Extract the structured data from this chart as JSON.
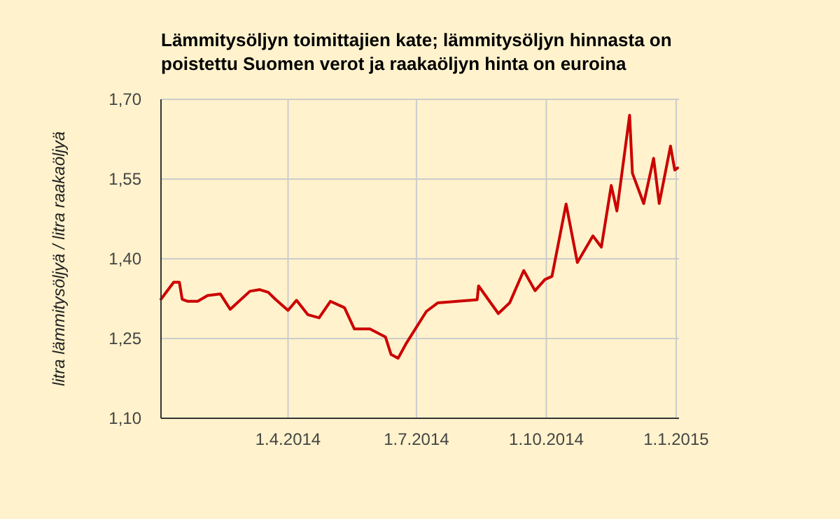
{
  "chart_data": {
    "type": "line",
    "title": "Lämmitysöljyn toimittajien kate; lämmitysöljyn hinnasta on poistettu Suomen verot ja raakaöljyn hinta on euroina",
    "ylabel": "litra lämmitysöljyä / litra raakaöljyä",
    "x": [
      "2014-01-01",
      "2014-01-10",
      "2014-01-14",
      "2014-01-16",
      "2014-01-20",
      "2014-01-27",
      "2014-02-03",
      "2014-02-12",
      "2014-02-19",
      "2014-03-05",
      "2014-03-12",
      "2014-03-18",
      "2014-03-23",
      "2014-04-01",
      "2014-04-07",
      "2014-04-15",
      "2014-04-23",
      "2014-05-01",
      "2014-05-11",
      "2014-05-18",
      "2014-05-29",
      "2014-06-09",
      "2014-06-13",
      "2014-06-18",
      "2014-06-24",
      "2014-07-08",
      "2014-07-16",
      "2014-08-13",
      "2014-08-14",
      "2014-08-28",
      "2014-09-05",
      "2014-09-15",
      "2014-09-23",
      "2014-09-30",
      "2014-10-05",
      "2014-10-15",
      "2014-10-23",
      "2014-11-03",
      "2014-11-09",
      "2014-11-16",
      "2014-11-20",
      "2014-11-29",
      "2014-12-01",
      "2014-12-09",
      "2014-12-16",
      "2014-12-20",
      "2014-12-28",
      "2014-12-31",
      "2015-01-02"
    ],
    "series": [
      {
        "color": "#cc0000",
        "values": [
          1.324,
          1.356,
          1.356,
          1.324,
          1.32,
          1.32,
          1.331,
          1.334,
          1.305,
          1.339,
          1.342,
          1.337,
          1.324,
          1.303,
          1.322,
          1.295,
          1.289,
          1.32,
          1.308,
          1.268,
          1.268,
          1.253,
          1.22,
          1.213,
          1.242,
          1.301,
          1.317,
          1.323,
          1.349,
          1.297,
          1.317,
          1.378,
          1.34,
          1.361,
          1.367,
          1.503,
          1.393,
          1.443,
          1.422,
          1.538,
          1.49,
          1.67,
          1.561,
          1.504,
          1.589,
          1.504,
          1.612,
          1.567,
          1.571
        ]
      }
    ],
    "xlim": [
      "2014-01-01",
      "2015-01-03"
    ],
    "xticks": [
      {
        "value": "2014-04-01",
        "label": "1.4.2014"
      },
      {
        "value": "2014-07-01",
        "label": "1.7.2014"
      },
      {
        "value": "2014-10-01",
        "label": "1.10.2014"
      },
      {
        "value": "2015-01-01",
        "label": "1.1.2015"
      }
    ],
    "ylim": [
      1.1,
      1.7
    ],
    "yticks": [
      {
        "value": 1.1,
        "label": "1,10"
      },
      {
        "value": 1.25,
        "label": "1,25"
      },
      {
        "value": 1.4,
        "label": "1,40"
      },
      {
        "value": 1.55,
        "label": "1,55"
      },
      {
        "value": 1.7,
        "label": "1,70"
      }
    ],
    "grid": true,
    "marker": "none",
    "line_style": "solid"
  }
}
